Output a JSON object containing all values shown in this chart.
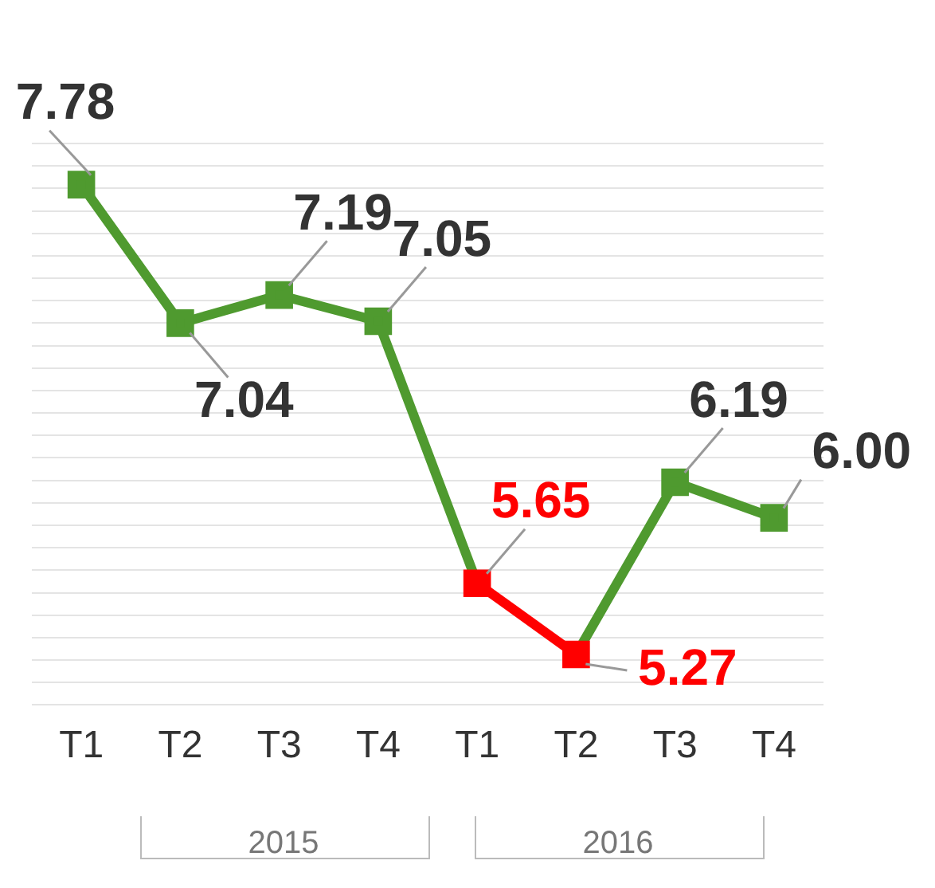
{
  "chart_data": {
    "type": "line",
    "categories": [
      "T1",
      "T2",
      "T3",
      "T4",
      "T1",
      "T2",
      "T3",
      "T4"
    ],
    "series": [
      {
        "color": "#4f9a2f",
        "values": [
          7.78,
          7.04,
          7.19,
          7.05,
          5.65,
          5.27,
          6.19,
          6.0
        ],
        "colors": [
          "#4f9a2f",
          "#4f9a2f",
          "#4f9a2f",
          "#4f9a2f",
          "#ff0000",
          "#ff0000",
          "#4f9a2f",
          "#4f9a2f"
        ],
        "value_labels": [
          "7.78",
          "7.04",
          "7.19",
          "7.05",
          "5.65",
          "5.27",
          "6.19",
          "6.00"
        ]
      }
    ],
    "annotations": [
      "2015",
      "2016"
    ],
    "marker": "square",
    "grid": "y",
    "tick_labels": "x",
    "legend": false
  }
}
